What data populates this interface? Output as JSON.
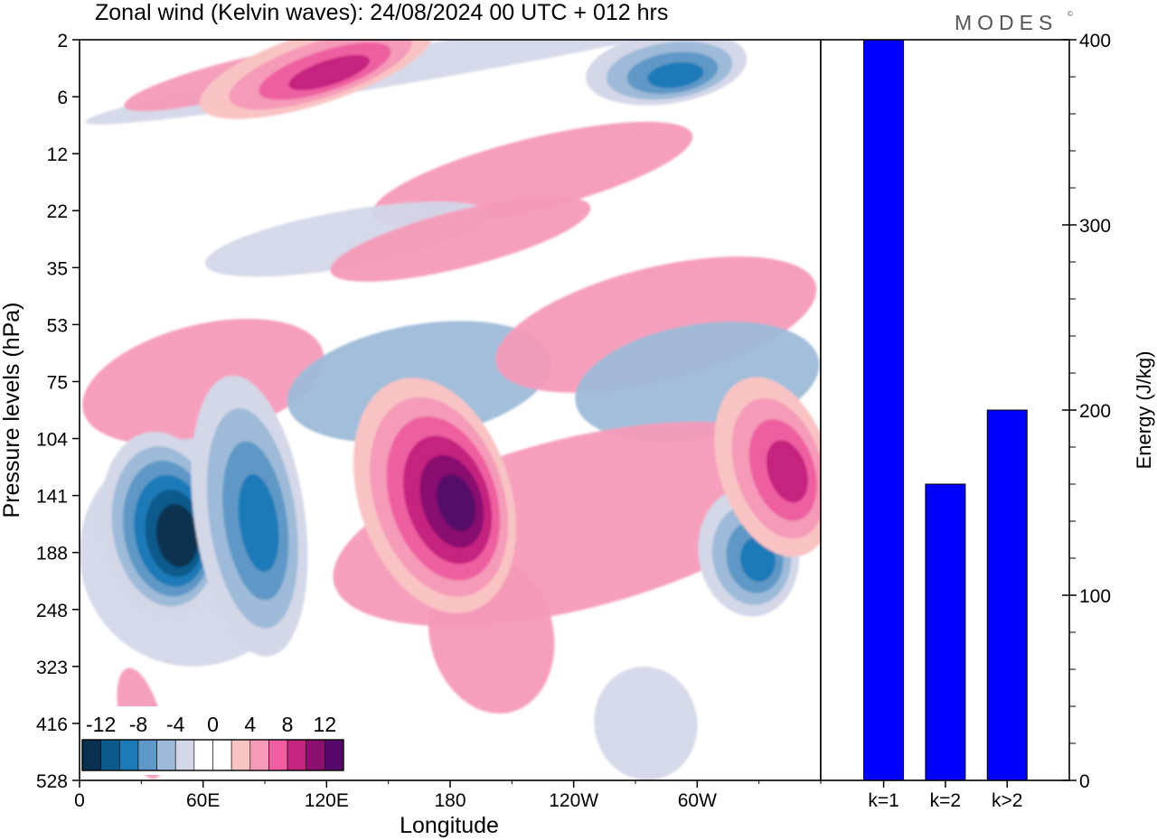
{
  "header": {
    "title": "Zonal wind (Kelvin waves):  24/08/2024  00 UTC  + 012 hrs",
    "brand": "MODES",
    "brand_mark": "©"
  },
  "chart_data": [
    {
      "type": "heatmap",
      "title": "Zonal wind (Kelvin waves):  24/08/2024  00 UTC  + 012 hrs",
      "xlabel": "Longitude",
      "ylabel": "Pressure levels (hPa)",
      "x_ticks": [
        "0",
        "60E",
        "120E",
        "180",
        "120W",
        "60W"
      ],
      "x_range_deg": [
        0,
        360
      ],
      "x_tick_values_deg": [
        0,
        60,
        120,
        180,
        240,
        300
      ],
      "y_ticks": [
        "2",
        "6",
        "12",
        "22",
        "35",
        "53",
        "75",
        "104",
        "141",
        "188",
        "248",
        "323",
        "416",
        "528"
      ],
      "colorbar": {
        "labels": [
          "-12",
          "-8",
          "-4",
          "0",
          "4",
          "8",
          "12"
        ],
        "colors": [
          "#08314f",
          "#0a5a8c",
          "#1d7ab8",
          "#5e98c6",
          "#9dbad8",
          "#d3d7e8",
          "#ffffff",
          "#ffffff",
          "#f9c3c3",
          "#f59ab8",
          "#ee5ea0",
          "#c6247f",
          "#8a1170",
          "#57096b"
        ]
      },
      "features": [
        {
          "name": "easterly core",
          "lon": [
            15,
            65
          ],
          "level": [
            104,
            248
          ],
          "value": -14
        },
        {
          "name": "easterly tongue",
          "lon": [
            60,
            105
          ],
          "level": [
            75,
            300
          ],
          "value": -8
        },
        {
          "name": "westerly core",
          "lon": [
            140,
            205
          ],
          "level": [
            75,
            248
          ],
          "value": 12
        },
        {
          "name": "easterly patch",
          "lon": [
            305,
            345
          ],
          "level": [
            141,
            248
          ],
          "value": -8
        },
        {
          "name": "westerly patch",
          "lon": [
            315,
            360
          ],
          "level": [
            75,
            188
          ],
          "value": 8
        },
        {
          "name": "upper easterly",
          "lon": [
            250,
            320
          ],
          "level": [
            2,
            6
          ],
          "value": -8
        },
        {
          "name": "upper westerly",
          "lon": [
            60,
            170
          ],
          "level": [
            2,
            6
          ],
          "value": 8
        }
      ]
    },
    {
      "type": "bar",
      "categories": [
        "k=1",
        "k=2",
        "k>2"
      ],
      "values": [
        400,
        160,
        200
      ],
      "ylabel": "Energy (J/kg)",
      "ylim": [
        0,
        400
      ],
      "y_ticks": [
        0,
        100,
        200,
        300,
        400
      ],
      "bar_color": "#0000ff"
    }
  ]
}
